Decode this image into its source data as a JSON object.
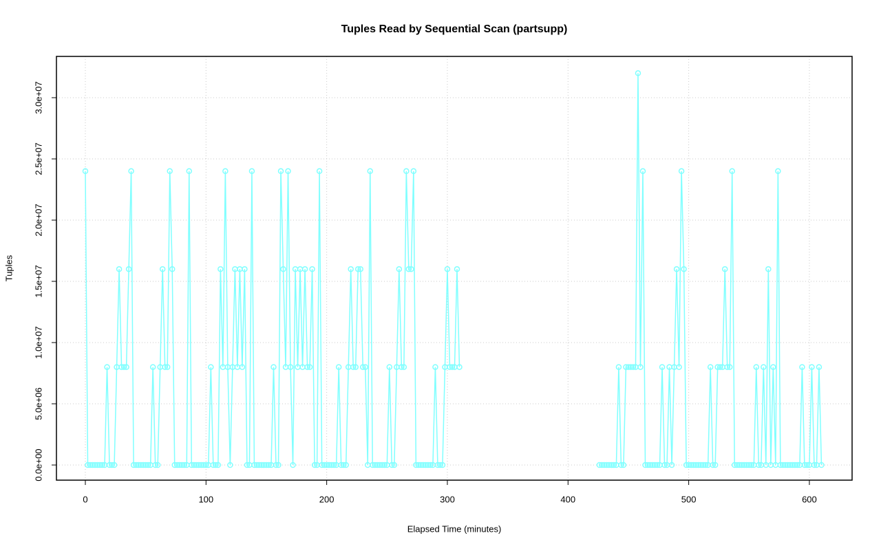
{
  "chart_data": {
    "type": "line",
    "title": "Tuples Read by Sequential Scan (partsupp)",
    "x_label": "Elapsed Time (minutes)",
    "y_label": "Tuples",
    "xlim": [
      -23.95,
      635.4
    ],
    "ylim": [
      -1236000,
      33370000
    ],
    "xticks": [
      0,
      100,
      200,
      300,
      400,
      500,
      600
    ],
    "yticks": [
      {
        "value": 0,
        "label": "0.0e+00"
      },
      {
        "value": 5000000,
        "label": "5.0e+06"
      },
      {
        "value": 10000000,
        "label": "1.0e+07"
      },
      {
        "value": 15000000,
        "label": "1.5e+07"
      },
      {
        "value": 20000000,
        "label": "2.0e+07"
      },
      {
        "value": 25000000,
        "label": "2.5e+07"
      },
      {
        "value": 30000000,
        "label": "3.0e+07"
      }
    ],
    "grid": true,
    "x": [
      0,
      2,
      4,
      6,
      8,
      10,
      12,
      14,
      16,
      18,
      20,
      22,
      24,
      26,
      28,
      30,
      32,
      34,
      36,
      38,
      40,
      42,
      44,
      46,
      48,
      50,
      52,
      54,
      56,
      58,
      60,
      62,
      64,
      66,
      68,
      70,
      72,
      74,
      76,
      78,
      80,
      82,
      84,
      86,
      88,
      90,
      92,
      94,
      96,
      98,
      100,
      102,
      104,
      106,
      108,
      110,
      112,
      114,
      116,
      118,
      120,
      122,
      124,
      126,
      128,
      130,
      132,
      134,
      136,
      138,
      140,
      142,
      144,
      146,
      148,
      150,
      152,
      154,
      156,
      158,
      160,
      162,
      164,
      166,
      168,
      170,
      172,
      174,
      176,
      178,
      180,
      182,
      184,
      186,
      188,
      190,
      192,
      194,
      196,
      198,
      200,
      202,
      204,
      206,
      208,
      210,
      212,
      214,
      216,
      218,
      220,
      222,
      224,
      226,
      228,
      230,
      232,
      234,
      236,
      238,
      240,
      242,
      244,
      246,
      248,
      250,
      252,
      254,
      256,
      258,
      260,
      262,
      264,
      266,
      268,
      270,
      272,
      274,
      276,
      278,
      280,
      282,
      284,
      286,
      288,
      290,
      292,
      294,
      296,
      298,
      300,
      302,
      304,
      306,
      308,
      310,
      312,
      426,
      428,
      430,
      432,
      434,
      436,
      438,
      440,
      442,
      444,
      446,
      448,
      450,
      452,
      454,
      456,
      458,
      460,
      462,
      464,
      466,
      468,
      470,
      472,
      474,
      476,
      478,
      480,
      482,
      484,
      486,
      488,
      490,
      492,
      494,
      496,
      498,
      500,
      502,
      504,
      506,
      508,
      510,
      512,
      514,
      516,
      518,
      520,
      522,
      524,
      526,
      528,
      530,
      532,
      534,
      536,
      538,
      540,
      542,
      544,
      546,
      548,
      550,
      552,
      554,
      556,
      558,
      560,
      562,
      564,
      566,
      568,
      570,
      572,
      574,
      576,
      578,
      580,
      582,
      584,
      586,
      588,
      590,
      592,
      594,
      596,
      598,
      600,
      602,
      604,
      606,
      608,
      610
    ],
    "series": [
      {
        "color": "#80ffff",
        "values": [
          24000000.0,
          0,
          0,
          0,
          0,
          0,
          0,
          0,
          0,
          8000000.0,
          0,
          0,
          0,
          8000000.0,
          16000000.0,
          8000000.0,
          8000000.0,
          8000000.0,
          16000000.0,
          24000000.0,
          0,
          0,
          0,
          0,
          0,
          0,
          0,
          0,
          8000000.0,
          0,
          0,
          8000000.0,
          16000000.0,
          8000000.0,
          8000000.0,
          24000000.0,
          16000000.0,
          0,
          0,
          0,
          0,
          0,
          0,
          24000000.0,
          0,
          0,
          0,
          0,
          0,
          0,
          0,
          0,
          8000000.0,
          0,
          0,
          0,
          16000000.0,
          8000000.0,
          24000000.0,
          8000000.0,
          0,
          8000000.0,
          16000000.0,
          8000000.0,
          16000000.0,
          8000000.0,
          16000000.0,
          0,
          0,
          24000000.0,
          0,
          0,
          0,
          0,
          0,
          0,
          0,
          0,
          8000000.0,
          0,
          0,
          24000000.0,
          16000000.0,
          8000000.0,
          24000000.0,
          8000000.0,
          0,
          16000000.0,
          8000000.0,
          16000000.0,
          8000000.0,
          16000000.0,
          8000000.0,
          8000000.0,
          16000000.0,
          0,
          0,
          24000000.0,
          0,
          0,
          0,
          0,
          0,
          0,
          0,
          8000000.0,
          0,
          0,
          0,
          8000000.0,
          16000000.0,
          8000000.0,
          8000000.0,
          16000000.0,
          16000000.0,
          8000000.0,
          8000000.0,
          0,
          24000000.0,
          0,
          0,
          0,
          0,
          0,
          0,
          0,
          8000000.0,
          0,
          0,
          8000000.0,
          16000000.0,
          8000000.0,
          8000000.0,
          24000000.0,
          16000000.0,
          16000000.0,
          24000000.0,
          0,
          0,
          0,
          0,
          0,
          0,
          0,
          0,
          8000000.0,
          0,
          0,
          0,
          8000000.0,
          16000000.0,
          8000000.0,
          8000000.0,
          8000000.0,
          16000000.0,
          8000000.0,
          null,
          0,
          0,
          0,
          0,
          0,
          0,
          0,
          0,
          8000000.0,
          0,
          0,
          8000000.0,
          8000000.0,
          8000000.0,
          8000000.0,
          8000000.0,
          32000000.0,
          8000000.0,
          24000000.0,
          0,
          0,
          0,
          0,
          0,
          0,
          0,
          8000000.0,
          0,
          0,
          8000000.0,
          0,
          8000000.0,
          16000000.0,
          8000000.0,
          24000000.0,
          16000000.0,
          0,
          0,
          0,
          0,
          0,
          0,
          0,
          0,
          0,
          0,
          8000000.0,
          0,
          0,
          8000000.0,
          8000000.0,
          8000000.0,
          16000000.0,
          8000000.0,
          8000000.0,
          24000000.0,
          0,
          0,
          0,
          0,
          0,
          0,
          0,
          0,
          0,
          8000000.0,
          0,
          0,
          8000000.0,
          0,
          16000000.0,
          0,
          8000000.0,
          0,
          24000000.0,
          0,
          0,
          0,
          0,
          0,
          0,
          0,
          0,
          0,
          8000000.0,
          0,
          0,
          0,
          8000000.0,
          0,
          0,
          8000000.0,
          0
        ]
      }
    ]
  }
}
